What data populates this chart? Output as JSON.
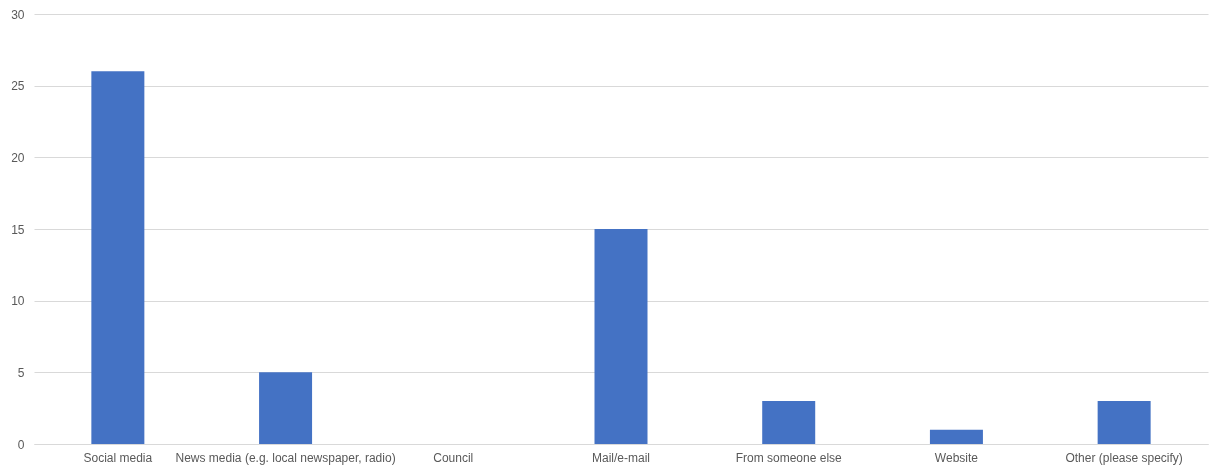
{
  "chart_data": {
    "type": "bar",
    "categories": [
      "Social media",
      "News media (e.g. local newspaper, radio)",
      "Council",
      "Mail/e-mail",
      "From someone else",
      "Website",
      "Other (please specify)"
    ],
    "values": [
      26,
      5,
      0,
      15,
      3,
      1,
      3
    ],
    "color": "#4472c4",
    "ylim": [
      0,
      30
    ],
    "yticks": [
      0,
      5,
      10,
      15,
      20,
      25,
      30
    ],
    "grid": "y"
  }
}
